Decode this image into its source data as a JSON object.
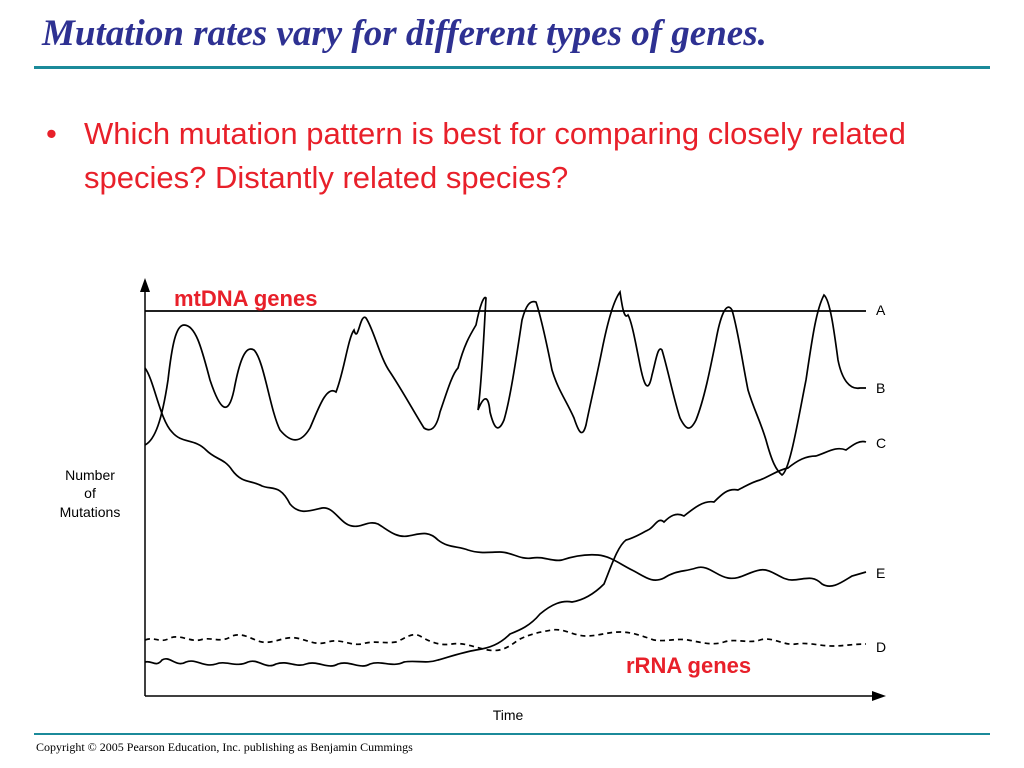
{
  "slide": {
    "title": "Mutation rates vary for different types of genes.",
    "bullet_marker": "•",
    "bullet_text": "Which mutation pattern is best for comparing closely related species?  Distantly related species?",
    "footer": "Copyright © 2005 Pearson Education, Inc. publishing as Benjamin Cummings"
  },
  "figure": {
    "y_axis_label": [
      "Number",
      "of",
      "Mutations"
    ],
    "x_axis_label": "Time",
    "curve_labels": {
      "A": "A",
      "B": "B",
      "C": "C",
      "D": "D",
      "E": "E"
    },
    "annotations": {
      "mtdna": "mtDNA genes",
      "rrna": "rRNA genes"
    },
    "annotation_color": "#e8202a"
  }
}
